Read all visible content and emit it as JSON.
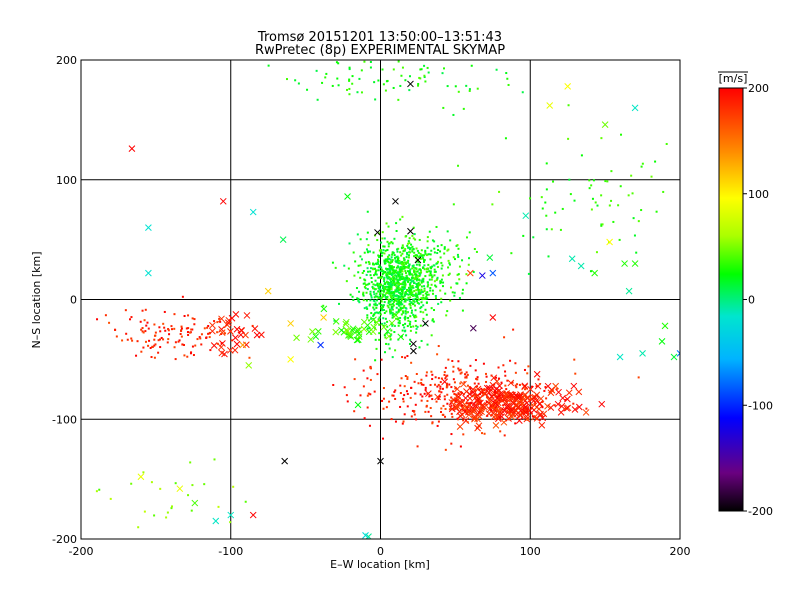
{
  "chart_data": {
    "type": "scatter",
    "title": "Tromsø 20151201 13:50:00–13:51:43",
    "subtitle": "RwPretec (8p) EXPERIMENTAL SKYMAP",
    "xlabel": "E–W location [km]",
    "ylabel": "N–S location [km]",
    "xlim": [
      -200,
      200
    ],
    "ylim": [
      -200,
      200
    ],
    "xticks": [
      -200,
      -100,
      0,
      100,
      200
    ],
    "yticks": [
      -200,
      -100,
      0,
      100,
      200
    ],
    "grid": true,
    "colorbar": {
      "label": "[m/s]",
      "min": -200,
      "max": 200,
      "ticks": [
        200,
        100,
        0,
        -100,
        -200
      ],
      "colormap": [
        "#000000",
        "#6a0080",
        "#0000ff",
        "#00b4ff",
        "#00e5cf",
        "#00ff00",
        "#aaff00",
        "#ffff00",
        "#ff8c00",
        "#ff0000"
      ]
    },
    "clusters": [
      {
        "x": 10,
        "y": 10,
        "sx": 12,
        "sy": 18,
        "v": 20,
        "n": 900,
        "marker": "dot"
      },
      {
        "x": 25,
        "y": 25,
        "sx": 18,
        "sy": 16,
        "v": 30,
        "n": 300,
        "marker": "dot"
      },
      {
        "x": -20,
        "y": -25,
        "sx": 12,
        "sy": 6,
        "v": 40,
        "n": 40,
        "marker": "cross"
      },
      {
        "x": 85,
        "y": -88,
        "sx": 20,
        "sy": 9,
        "v": 200,
        "n": 240,
        "marker": "cross"
      },
      {
        "x": 50,
        "y": -78,
        "sx": 32,
        "sy": 16,
        "v": 200,
        "n": 330,
        "marker": "dot"
      },
      {
        "x": -140,
        "y": -30,
        "sx": 22,
        "sy": 9,
        "v": 200,
        "n": 130,
        "marker": "dot"
      },
      {
        "x": -100,
        "y": -30,
        "sx": 10,
        "sy": 10,
        "v": 200,
        "n": 30,
        "marker": "cross"
      },
      {
        "x": 10,
        "y": 185,
        "sx": 35,
        "sy": 10,
        "v": 25,
        "n": 80,
        "marker": "dot"
      },
      {
        "x": 140,
        "y": 85,
        "sx": 30,
        "sy": 30,
        "v": 30,
        "n": 70,
        "marker": "dot"
      },
      {
        "x": -130,
        "y": -165,
        "sx": 25,
        "sy": 18,
        "v": 60,
        "n": 25,
        "marker": "dot"
      }
    ],
    "points": [
      {
        "x": -166,
        "y": 126,
        "v": 200,
        "marker": "cross"
      },
      {
        "x": -105,
        "y": 82,
        "v": 200,
        "marker": "cross"
      },
      {
        "x": -155,
        "y": 60,
        "v": -25,
        "marker": "cross"
      },
      {
        "x": -155,
        "y": 22,
        "v": -25,
        "marker": "cross"
      },
      {
        "x": -85,
        "y": 73,
        "v": -25,
        "marker": "cross"
      },
      {
        "x": -65,
        "y": 50,
        "v": 5,
        "marker": "cross"
      },
      {
        "x": -22,
        "y": 86,
        "v": 20,
        "marker": "cross"
      },
      {
        "x": 10,
        "y": 82,
        "v": -200,
        "marker": "cross"
      },
      {
        "x": 20,
        "y": 57,
        "v": -200,
        "marker": "cross"
      },
      {
        "x": -2,
        "y": 56,
        "v": -200,
        "marker": "cross"
      },
      {
        "x": 20,
        "y": 180,
        "v": -200,
        "marker": "cross"
      },
      {
        "x": 113,
        "y": 162,
        "v": 100,
        "marker": "cross"
      },
      {
        "x": 125,
        "y": 178,
        "v": 110,
        "marker": "cross"
      },
      {
        "x": 170,
        "y": 160,
        "v": -20,
        "marker": "cross"
      },
      {
        "x": 150,
        "y": 146,
        "v": 50,
        "marker": "cross"
      },
      {
        "x": 97,
        "y": 70,
        "v": -15,
        "marker": "cross"
      },
      {
        "x": 153,
        "y": 48,
        "v": 110,
        "marker": "cross"
      },
      {
        "x": 128,
        "y": 34,
        "v": -15,
        "marker": "cross"
      },
      {
        "x": 134,
        "y": 28,
        "v": -15,
        "marker": "cross"
      },
      {
        "x": 143,
        "y": 22,
        "v": 30,
        "marker": "cross"
      },
      {
        "x": 163,
        "y": 30,
        "v": 30,
        "marker": "cross"
      },
      {
        "x": 170,
        "y": 30,
        "v": 30,
        "marker": "cross"
      },
      {
        "x": 166,
        "y": 7,
        "v": -10,
        "marker": "cross"
      },
      {
        "x": 190,
        "y": -22,
        "v": 30,
        "marker": "cross"
      },
      {
        "x": 188,
        "y": -35,
        "v": 20,
        "marker": "cross"
      },
      {
        "x": 196,
        "y": -48,
        "v": 10,
        "marker": "cross"
      },
      {
        "x": 200,
        "y": -45,
        "v": -80,
        "marker": "cross"
      },
      {
        "x": 75,
        "y": 22,
        "v": -90,
        "marker": "cross"
      },
      {
        "x": 73,
        "y": 35,
        "v": 10,
        "marker": "cross"
      },
      {
        "x": 60,
        "y": 22,
        "v": 180,
        "marker": "cross"
      },
      {
        "x": 68,
        "y": 20,
        "v": -120,
        "marker": "cross"
      },
      {
        "x": 25,
        "y": 33,
        "v": -200,
        "marker": "cross"
      },
      {
        "x": 62,
        "y": -24,
        "v": -170,
        "marker": "cross"
      },
      {
        "x": 75,
        "y": -15,
        "v": 200,
        "marker": "cross"
      },
      {
        "x": 30,
        "y": -20,
        "v": -200,
        "marker": "cross"
      },
      {
        "x": 22,
        "y": -37,
        "v": -200,
        "marker": "cross"
      },
      {
        "x": 22,
        "y": -43,
        "v": -200,
        "marker": "cross"
      },
      {
        "x": -40,
        "y": -38,
        "v": -100,
        "marker": "cross"
      },
      {
        "x": -60,
        "y": -50,
        "v": 110,
        "marker": "cross"
      },
      {
        "x": -75,
        "y": 7,
        "v": 130,
        "marker": "cross"
      },
      {
        "x": -60,
        "y": -20,
        "v": 130,
        "marker": "cross"
      },
      {
        "x": -38,
        "y": -15,
        "v": 130,
        "marker": "cross"
      },
      {
        "x": -92,
        "y": -38,
        "v": 150,
        "marker": "cross"
      },
      {
        "x": -88,
        "y": -55,
        "v": 60,
        "marker": "cross"
      },
      {
        "x": -15,
        "y": -88,
        "v": 20,
        "marker": "cross"
      },
      {
        "x": 0,
        "y": -135,
        "v": -200,
        "marker": "cross"
      },
      {
        "x": -64,
        "y": -135,
        "v": -200,
        "marker": "cross"
      },
      {
        "x": -85,
        "y": -180,
        "v": 200,
        "marker": "cross"
      },
      {
        "x": -100,
        "y": -180,
        "v": -20,
        "marker": "cross"
      },
      {
        "x": -110,
        "y": -185,
        "v": -20,
        "marker": "cross"
      },
      {
        "x": -160,
        "y": -148,
        "v": 100,
        "marker": "cross"
      },
      {
        "x": -134,
        "y": -158,
        "v": 100,
        "marker": "cross"
      },
      {
        "x": -124,
        "y": -170,
        "v": 40,
        "marker": "cross"
      },
      {
        "x": -8,
        "y": -198,
        "v": -10,
        "marker": "cross"
      },
      {
        "x": -10,
        "y": -197,
        "v": -30,
        "marker": "cross"
      },
      {
        "x": 160,
        "y": -48,
        "v": -20,
        "marker": "cross"
      },
      {
        "x": 175,
        "y": -45,
        "v": -15,
        "marker": "cross"
      }
    ]
  }
}
